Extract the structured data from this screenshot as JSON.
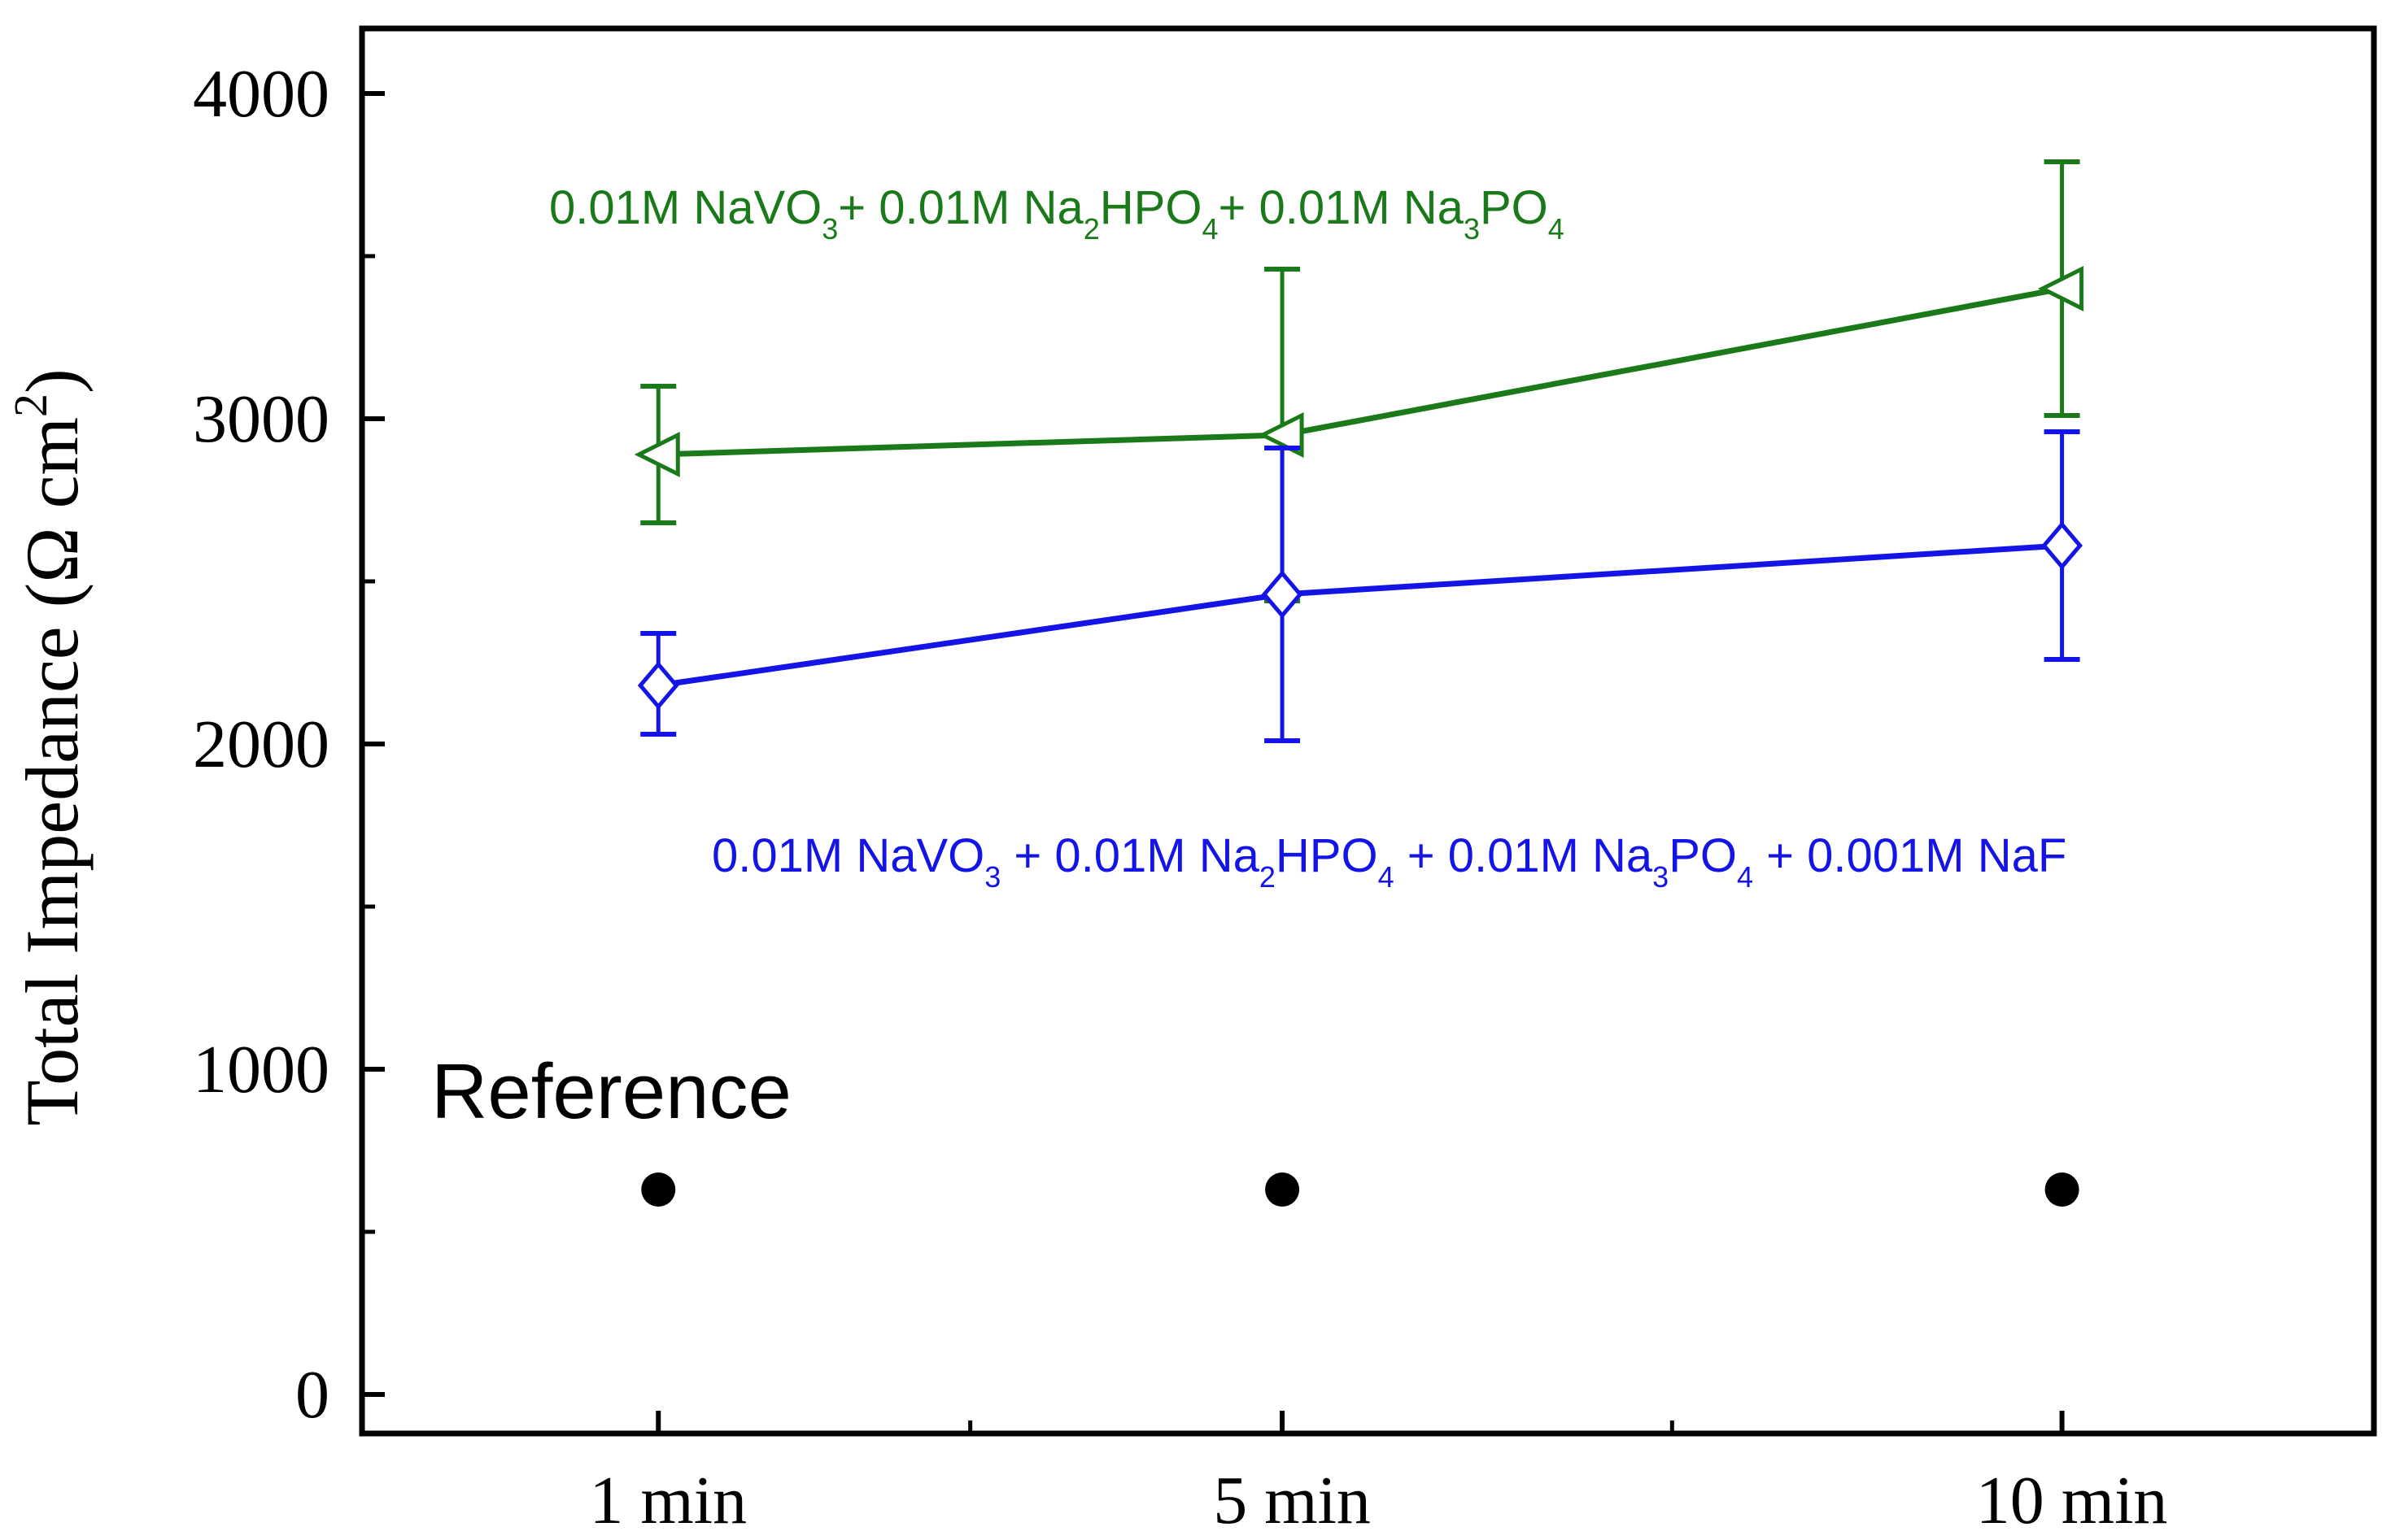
{
  "chart_data": {
    "type": "line",
    "title": "",
    "xlabel": "",
    "ylabel": "Total Impedance (Ω cm²)",
    "ylabel_parts": {
      "main": "Total Impedance (Ω cm",
      "sup": "2",
      "close": ")"
    },
    "categories": [
      "1 min",
      "5 min",
      "10 min"
    ],
    "x_positions": [
      1,
      5,
      10
    ],
    "xlim": [
      -0.9,
      12
    ],
    "minor_x_ticks": [
      3,
      7.5,
      12
    ],
    "ylim": [
      -120,
      4200
    ],
    "yticks": [
      0,
      1000,
      2000,
      3000,
      4000
    ],
    "ytick_labels": [
      "0",
      "1000",
      "2000",
      "3000",
      "4000"
    ],
    "minor_y_ticks": [
      500,
      1500,
      2500,
      3500
    ],
    "grid": false,
    "series": [
      {
        "name": "0.01M NaVO3+ 0.01M Na2HPO4+ 0.01M Na3PO4",
        "color": "#1a7a1a",
        "marker": "triangle-left-open",
        "values": [
          2890,
          2950,
          3400
        ],
        "err_low": [
          2680,
          2440,
          3010
        ],
        "err_high": [
          3100,
          3460,
          3790
        ],
        "label_parts": [
          {
            "t": "0.01M NaVO",
            "sub": false
          },
          {
            "t": "3",
            "sub": true
          },
          {
            "t": "+ 0.01M Na",
            "sub": false
          },
          {
            "t": "2",
            "sub": true
          },
          {
            "t": "HPO",
            "sub": false
          },
          {
            "t": "4",
            "sub": true
          },
          {
            "t": "+ 0.01M Na",
            "sub": false
          },
          {
            "t": "3",
            "sub": true
          },
          {
            "t": "PO",
            "sub": false
          },
          {
            "t": "4",
            "sub": true
          }
        ]
      },
      {
        "name": "0.01M NaVO3 + 0.01M Na2HPO4 + 0.01M Na3PO4 + 0.001M NaF",
        "color": "#1414e6",
        "marker": "diamond-open",
        "values": [
          2180,
          2460,
          2610
        ],
        "err_low": [
          2030,
          2010,
          2260
        ],
        "err_high": [
          2340,
          2910,
          2960
        ],
        "label_parts": [
          {
            "t": "0.01M NaVO",
            "sub": false
          },
          {
            "t": "3",
            "sub": true
          },
          {
            "t": " + 0.01M Na",
            "sub": false
          },
          {
            "t": "2",
            "sub": true
          },
          {
            "t": "HPO",
            "sub": false
          },
          {
            "t": "4",
            "sub": true
          },
          {
            "t": " + 0.01M Na",
            "sub": false
          },
          {
            "t": "3",
            "sub": true
          },
          {
            "t": "PO",
            "sub": false
          },
          {
            "t": "4",
            "sub": true
          },
          {
            "t": " + 0.001M NaF",
            "sub": false
          }
        ]
      },
      {
        "name": "Reference",
        "color": "#000000",
        "marker": "circle-filled",
        "values": [
          630,
          630,
          630
        ],
        "label_parts": [
          {
            "t": "Reference",
            "sub": false
          }
        ]
      }
    ]
  }
}
